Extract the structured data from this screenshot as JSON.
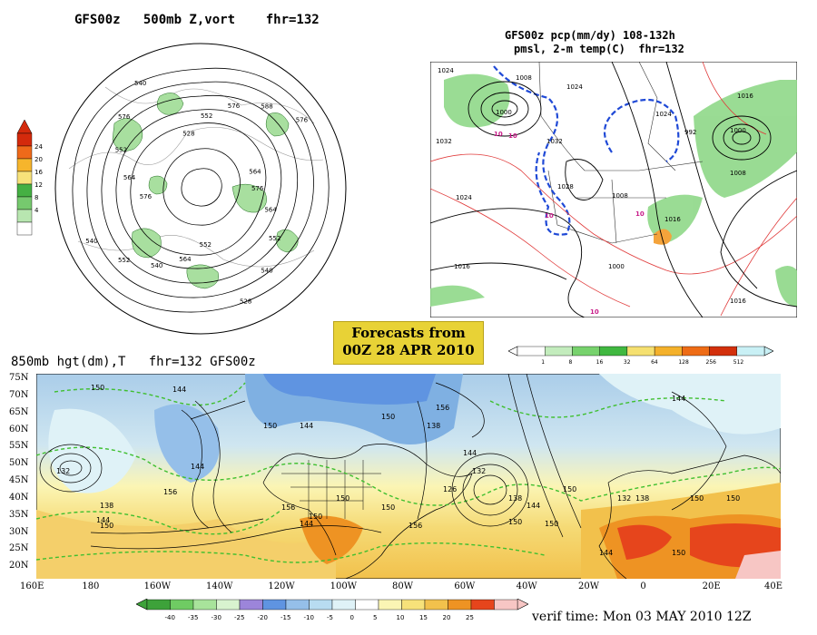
{
  "panels": {
    "polar": {
      "title": "GFS00z   500mb Z,vort    fhr=132",
      "contour_labels": [
        "576",
        "564",
        "552",
        "540",
        "528",
        "552",
        "564",
        "540",
        "552",
        "540",
        "576",
        "564",
        "552",
        "576",
        "540",
        "528",
        "552",
        "576",
        "588",
        "576",
        "564"
      ],
      "colorbar": {
        "colors": [
          "#ffffff",
          "#b8e6b0",
          "#76c96e",
          "#45b043",
          "#f7e27a",
          "#f6b52c",
          "#ef6a1a",
          "#d42a0c"
        ],
        "ticks": [
          "4",
          "8",
          "12",
          "16",
          "20",
          "24"
        ]
      }
    },
    "regional": {
      "title_line1": "GFS00z pcp(mm/dy) 108-132h",
      "title_line2": "pmsl, 2-m temp(C)  fhr=132",
      "labels": [
        "1024",
        "1008",
        "1000",
        "1024",
        "1032",
        "1028",
        "1000",
        "1032",
        "1024",
        "1008",
        "1016",
        "1024",
        "1008",
        "1016",
        "1000",
        "992",
        "1016",
        "1016"
      ],
      "temp_labels": [
        "10",
        "10",
        "10",
        "10",
        "10"
      ],
      "colorbar": {
        "colors": [
          "#ffffff",
          "#c3ecbd",
          "#77d26d",
          "#40b840",
          "#f5e070",
          "#f4b12b",
          "#ee6c16",
          "#d3300c",
          "#c9f0f5"
        ],
        "ticks": [
          "1",
          "8",
          "16",
          "32",
          "64",
          "128",
          "256",
          "512"
        ]
      }
    },
    "banner": {
      "line1": "Forecasts from",
      "line2": "00Z 28 APR 2010"
    },
    "main": {
      "title": "850mb hgt(dm),T   fhr=132 GFS00z",
      "lat_labels": [
        "75N",
        "70N",
        "65N",
        "60N",
        "55N",
        "50N",
        "45N",
        "40N",
        "35N",
        "30N",
        "25N",
        "20N"
      ],
      "lon_labels": [
        "160E",
        "180",
        "160W",
        "140W",
        "120W",
        "100W",
        "80W",
        "60W",
        "40W",
        "20W",
        "0",
        "20E",
        "40E"
      ],
      "contour_labels": [
        "150",
        "144",
        "150",
        "144",
        "132",
        "138",
        "144",
        "150",
        "156",
        "144",
        "150",
        "156",
        "150",
        "144",
        "150",
        "156",
        "126",
        "132",
        "138",
        "144",
        "150",
        "132",
        "138",
        "144",
        "150",
        "156",
        "138",
        "144",
        "150",
        "150",
        "144",
        "150",
        "150",
        "150"
      ],
      "colorbar": {
        "colors": [
          "#3da23a",
          "#6fcb63",
          "#a8e39b",
          "#d8f3cf",
          "#9c85da",
          "#5f94e1",
          "#95bfe9",
          "#b8dcf1",
          "#dff2f7",
          "#ffffff",
          "#fbf5b4",
          "#f7e27a",
          "#f2c14c",
          "#ee9323",
          "#e6451c",
          "#f7c6c4"
        ],
        "ticks": [
          "-40",
          "-35",
          "-30",
          "-25",
          "-20",
          "-15",
          "-10",
          "-5",
          "0",
          "5",
          "10",
          "15",
          "20",
          "25"
        ]
      }
    },
    "verif": "verif time: Mon 03 MAY 2010 12Z"
  }
}
